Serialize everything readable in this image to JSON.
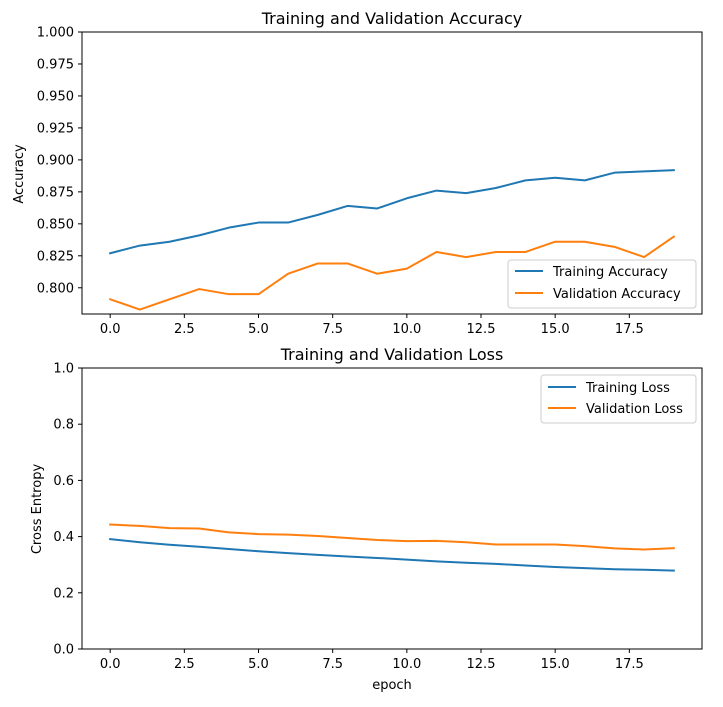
{
  "chart_data": [
    {
      "type": "line",
      "title": "Training and Validation Accuracy",
      "xlabel": "",
      "ylabel": "Accuracy",
      "xlim": [
        -0.95,
        19.95
      ],
      "ylim": [
        0.7795,
        1.0
      ],
      "x_ticks": [
        0,
        2.5,
        5,
        7.5,
        10,
        12.5,
        15,
        17.5
      ],
      "x_tick_labels": [
        "0.0",
        "2.5",
        "5.0",
        "7.5",
        "10.0",
        "12.5",
        "15.0",
        "17.5"
      ],
      "y_ticks": [
        0.8,
        0.825,
        0.85,
        0.875,
        0.9,
        0.925,
        0.95,
        0.975,
        1.0
      ],
      "y_tick_labels": [
        "0.800",
        "0.825",
        "0.850",
        "0.875",
        "0.900",
        "0.925",
        "0.950",
        "0.975",
        "1.000"
      ],
      "legend_position": "lower-right",
      "grid": false,
      "x": [
        0,
        1,
        2,
        3,
        4,
        5,
        6,
        7,
        8,
        9,
        10,
        11,
        12,
        13,
        14,
        15,
        16,
        17,
        18,
        19
      ],
      "series": [
        {
          "name": "Training Accuracy",
          "color": "#1f77b4",
          "values": [
            0.827,
            0.833,
            0.836,
            0.841,
            0.847,
            0.851,
            0.851,
            0.857,
            0.864,
            0.862,
            0.87,
            0.876,
            0.874,
            0.878,
            0.884,
            0.886,
            0.884,
            0.89,
            0.891,
            0.892
          ]
        },
        {
          "name": "Validation Accuracy",
          "color": "#ff7f0e",
          "values": [
            0.791,
            0.783,
            0.791,
            0.799,
            0.795,
            0.795,
            0.811,
            0.819,
            0.819,
            0.811,
            0.815,
            0.828,
            0.824,
            0.828,
            0.828,
            0.836,
            0.836,
            0.832,
            0.824,
            0.84
          ]
        }
      ]
    },
    {
      "type": "line",
      "title": "Training and Validation Loss",
      "xlabel": "epoch",
      "ylabel": "Cross Entropy",
      "xlim": [
        -0.95,
        19.95
      ],
      "ylim": [
        0.0,
        1.0
      ],
      "x_ticks": [
        0,
        2.5,
        5,
        7.5,
        10,
        12.5,
        15,
        17.5
      ],
      "x_tick_labels": [
        "0.0",
        "2.5",
        "5.0",
        "7.5",
        "10.0",
        "12.5",
        "15.0",
        "17.5"
      ],
      "y_ticks": [
        0.0,
        0.2,
        0.4,
        0.6,
        0.8,
        1.0
      ],
      "y_tick_labels": [
        "0.0",
        "0.2",
        "0.4",
        "0.6",
        "0.8",
        "1.0"
      ],
      "legend_position": "upper-right",
      "grid": false,
      "x": [
        0,
        1,
        2,
        3,
        4,
        5,
        6,
        7,
        8,
        9,
        10,
        11,
        12,
        13,
        14,
        15,
        16,
        17,
        18,
        19
      ],
      "series": [
        {
          "name": "Training Loss",
          "color": "#1f77b4",
          "values": [
            0.391,
            0.38,
            0.371,
            0.364,
            0.356,
            0.348,
            0.341,
            0.335,
            0.329,
            0.324,
            0.318,
            0.312,
            0.307,
            0.303,
            0.297,
            0.292,
            0.288,
            0.284,
            0.282,
            0.279
          ]
        },
        {
          "name": "Validation Loss",
          "color": "#ff7f0e",
          "values": [
            0.443,
            0.438,
            0.43,
            0.429,
            0.415,
            0.409,
            0.407,
            0.402,
            0.395,
            0.388,
            0.384,
            0.385,
            0.38,
            0.372,
            0.372,
            0.372,
            0.366,
            0.358,
            0.354,
            0.359
          ]
        }
      ]
    }
  ]
}
